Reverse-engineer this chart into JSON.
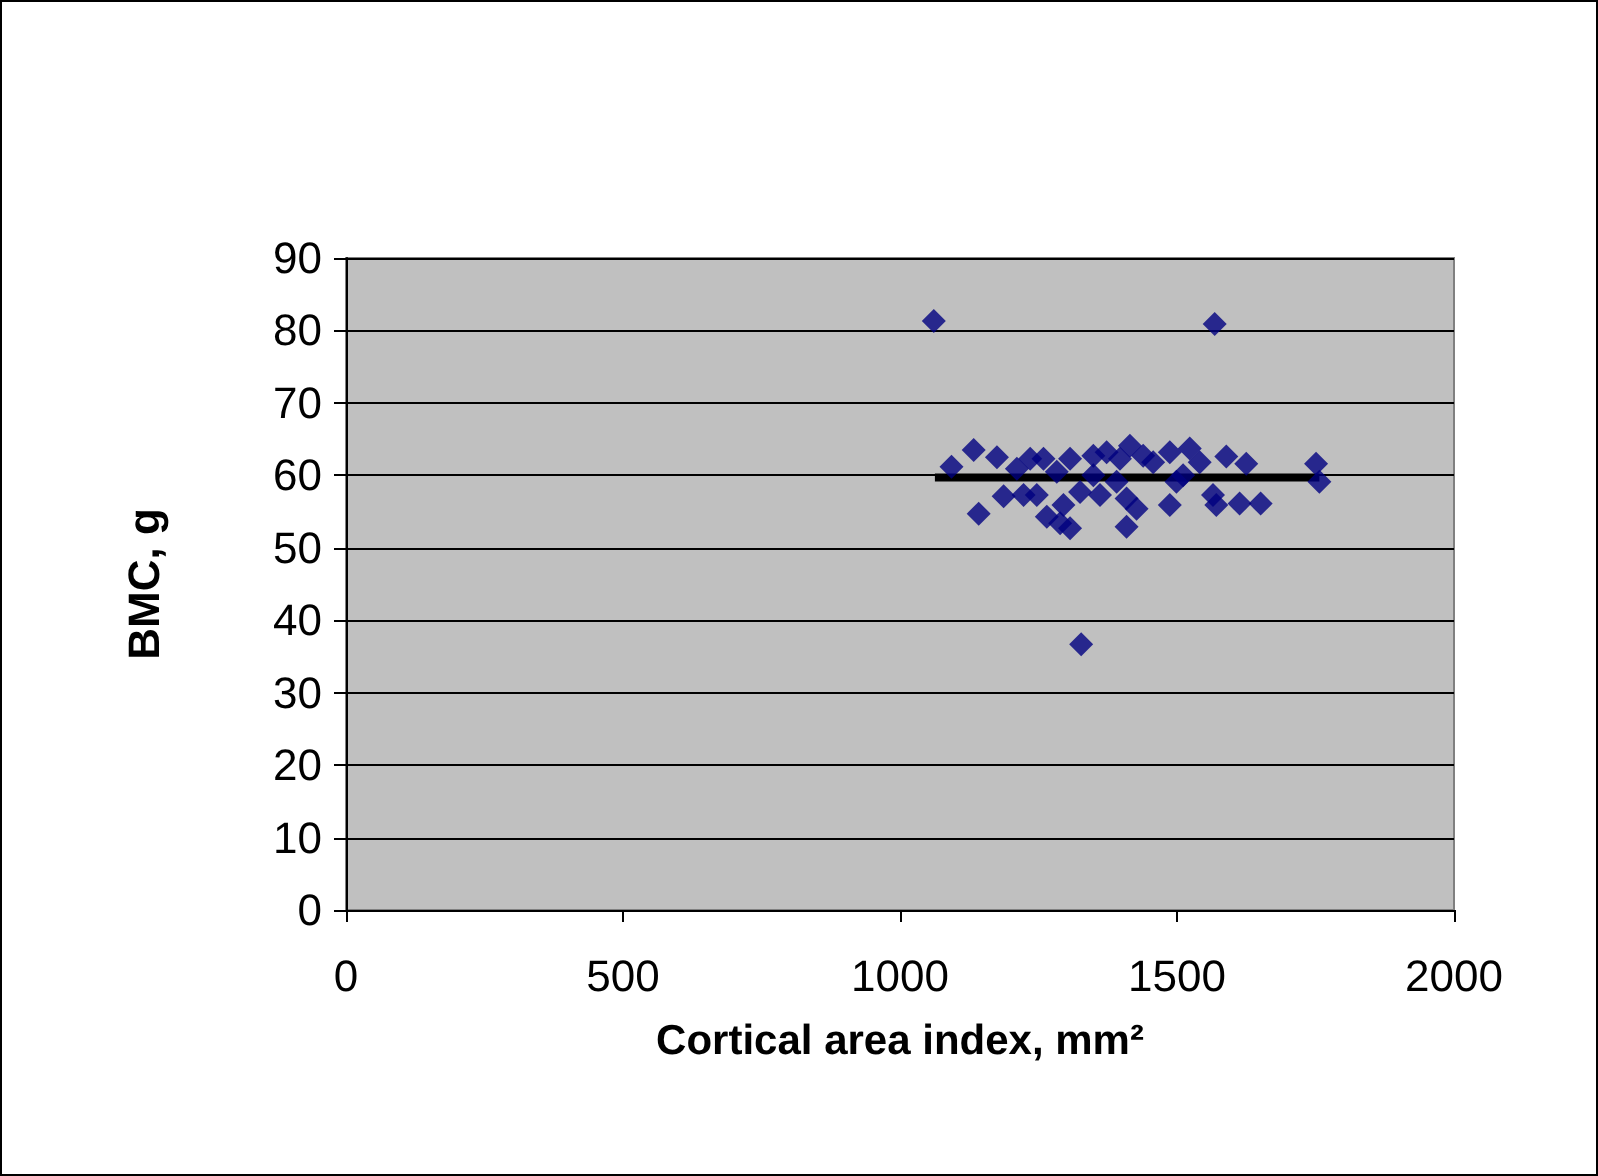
{
  "chart_data": {
    "type": "scatter",
    "xlabel": "Cortical area index, mm²",
    "ylabel": "BMC, g",
    "xlim": [
      0,
      2000
    ],
    "xticks": [
      0,
      500,
      1000,
      1500,
      2000
    ],
    "ylim": [
      0,
      90
    ],
    "yticks": [
      0,
      10,
      20,
      30,
      40,
      50,
      60,
      70,
      80,
      90
    ],
    "grid": "y",
    "marker": "diamond",
    "series": [
      {
        "color": "#000080",
        "x": [
          1061,
          1568,
          1327,
          1093,
          1133,
          1175,
          1142,
          1187,
          1211,
          1235,
          1259,
          1247,
          1265,
          1295,
          1289,
          1307,
          1307,
          1325,
          1349,
          1361,
          1373,
          1397,
          1415,
          1409,
          1427,
          1409,
          1439,
          1457,
          1487,
          1487,
          1523,
          1499,
          1541,
          1553,
          1571,
          1589,
          1613,
          1625,
          1651,
          1751,
          1757,
          1223,
          1349,
          1511,
          1565,
          1283,
          1391
        ],
        "values": [
          81.3,
          80.9,
          36.7,
          61.2,
          63.5,
          62.5,
          54.7,
          57.1,
          60.9,
          62.3,
          62.3,
          57.3,
          54.3,
          55.9,
          53.4,
          52.7,
          62.3,
          57.7,
          62.7,
          57.3,
          63.2,
          62.3,
          64.1,
          56.8,
          55.4,
          52.9,
          62.7,
          61.8,
          63.2,
          55.9,
          63.7,
          59.1,
          61.8,
          null,
          55.9,
          62.6,
          56.1,
          61.6,
          56.1,
          61.6,
          59.1,
          57.3,
          60,
          60,
          57.3,
          60.5,
          59.1
        ]
      },
      {
        "type": "line",
        "color": "#000000",
        "x": [
          1063,
          1757
        ],
        "values": [
          59.7,
          59.7
        ],
        "marker": "none",
        "line_style": "solid"
      }
    ]
  }
}
